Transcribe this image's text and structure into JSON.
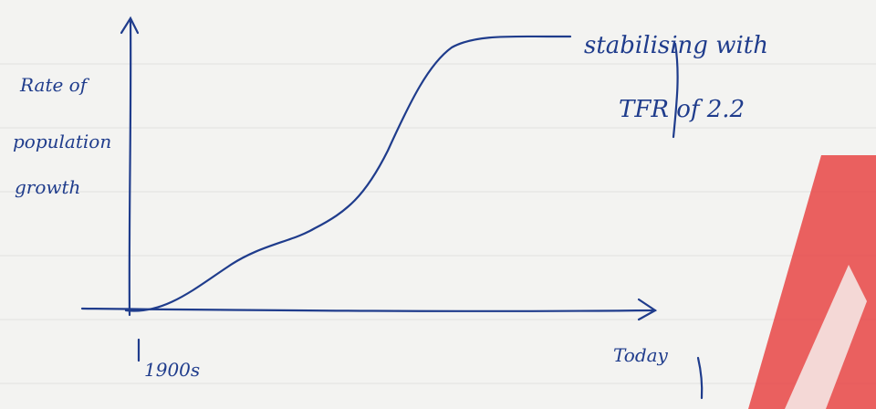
{
  "axis": {
    "y_label": [
      "Rate of",
      "population",
      "growth"
    ],
    "x_start": "1900s",
    "x_end": "Today"
  },
  "annotation": [
    "stabilising with",
    "TFR of 2.2"
  ]
}
